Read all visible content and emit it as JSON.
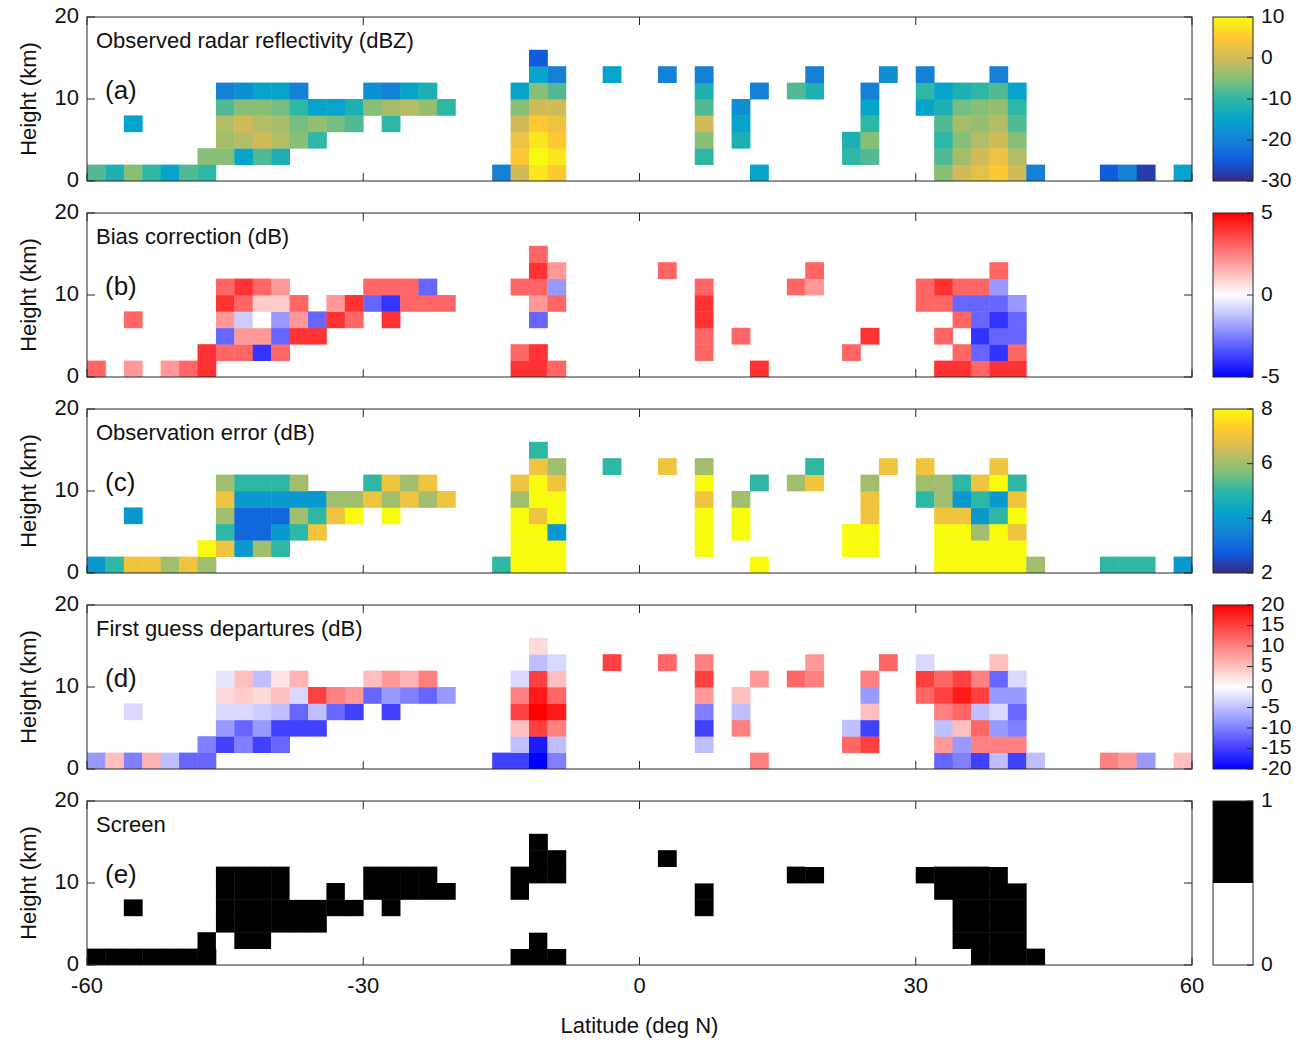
{
  "chart_data": {
    "type": "heatmap",
    "xlabel": "Latitude (deg N)",
    "ylabel": "Height (km)",
    "xlim": [
      -60,
      60
    ],
    "xticks": [
      -60,
      -30,
      0,
      30,
      60
    ],
    "ylim": [
      0,
      20
    ],
    "yticks": [
      0,
      10,
      20
    ],
    "cell_width": 2,
    "cell_height": 2,
    "x": [
      -59,
      -57,
      -55,
      -53,
      -51,
      -49,
      -55,
      -47,
      -47,
      -45,
      -45,
      -45,
      -45,
      -45,
      -43,
      -43,
      -43,
      -43,
      -43,
      -41,
      -41,
      -41,
      -41,
      -41,
      -39,
      -39,
      -39,
      -39,
      -39,
      -37,
      -37,
      -37,
      -37,
      -35,
      -35,
      -35,
      -33,
      -33,
      -31,
      -31,
      -29,
      -29,
      -27,
      -27,
      -27,
      -25,
      -25,
      -23,
      -23,
      -21,
      -15,
      -13,
      -13,
      -13,
      -13,
      -13,
      -13,
      -11,
      -11,
      -11,
      -11,
      -11,
      -11,
      -11,
      -11,
      -9,
      -9,
      -9,
      -9,
      -9,
      -9,
      -9,
      -3,
      3,
      7,
      7,
      7,
      7,
      7,
      7,
      11,
      11,
      11,
      13,
      13,
      17,
      19,
      19,
      23,
      23,
      25,
      25,
      25,
      25,
      25,
      27,
      31,
      31,
      31,
      33,
      33,
      33,
      33,
      33,
      33,
      35,
      35,
      35,
      35,
      35,
      35,
      37,
      37,
      37,
      37,
      37,
      37,
      39,
      39,
      39,
      39,
      39,
      39,
      39,
      41,
      41,
      41,
      41,
      41,
      41,
      43,
      51,
      53,
      55,
      59
    ],
    "y": [
      1,
      1,
      1,
      1,
      1,
      1,
      7,
      1,
      3,
      3,
      5,
      7,
      9,
      11,
      3,
      5,
      7,
      9,
      11,
      3,
      5,
      7,
      9,
      11,
      3,
      5,
      7,
      9,
      11,
      5,
      7,
      9,
      11,
      5,
      7,
      9,
      7,
      9,
      7,
      9,
      9,
      11,
      7,
      9,
      11,
      9,
      11,
      9,
      11,
      9,
      1,
      1,
      3,
      5,
      7,
      9,
      11,
      1,
      3,
      5,
      7,
      9,
      11,
      13,
      15,
      1,
      3,
      5,
      7,
      9,
      11,
      13,
      13,
      13,
      3,
      5,
      7,
      9,
      11,
      13,
      5,
      7,
      9,
      11,
      1,
      11,
      11,
      13,
      3,
      5,
      3,
      5,
      7,
      9,
      11,
      13,
      9,
      11,
      13,
      1,
      3,
      5,
      7,
      9,
      11,
      1,
      3,
      5,
      7,
      9,
      11,
      1,
      3,
      5,
      7,
      9,
      11,
      1,
      3,
      5,
      7,
      9,
      11,
      13,
      1,
      3,
      5,
      7,
      9,
      11,
      1,
      1,
      1,
      1,
      1
    ],
    "panels": [
      {
        "letter": "(a)",
        "title": "Observed radar reflectivity (dBZ)",
        "type": "heatmap",
        "colorbar": {
          "range": [
            -30,
            10
          ],
          "ticks": [
            -30,
            -20,
            -10,
            0,
            10
          ],
          "colors": [
            "#352a87",
            "#0f5cdd",
            "#1481d6",
            "#06a4ca",
            "#2eb7a4",
            "#87bf77",
            "#d1bb59",
            "#fec832",
            "#f9fb0e"
          ]
        },
        "values": [
          -8,
          -12,
          -5,
          -10,
          -15,
          -8,
          -15,
          -10,
          -5,
          -5,
          -3,
          -2,
          -8,
          -20,
          -15,
          -2,
          0,
          -5,
          -18,
          -8,
          0,
          -2,
          -5,
          -15,
          -12,
          -2,
          -3,
          -6,
          -15,
          -5,
          -6,
          -10,
          -20,
          -10,
          -4,
          -15,
          -6,
          -15,
          -8,
          -12,
          -5,
          -18,
          -10,
          -3,
          -20,
          -2,
          -15,
          -4,
          -12,
          -10,
          -20,
          0,
          5,
          3,
          0,
          -5,
          -15,
          8,
          10,
          8,
          5,
          0,
          -5,
          -15,
          -25,
          5,
          8,
          5,
          3,
          0,
          -8,
          -20,
          -15,
          -20,
          -10,
          -5,
          0,
          -8,
          -12,
          -20,
          -12,
          -15,
          -18,
          -20,
          -15,
          -8,
          -12,
          -20,
          -10,
          -12,
          -8,
          -5,
          -10,
          -15,
          -20,
          -18,
          -15,
          -10,
          -20,
          -5,
          -8,
          -10,
          -8,
          -12,
          -15,
          0,
          -3,
          -5,
          -3,
          -6,
          -12,
          2,
          0,
          -2,
          -4,
          -5,
          -10,
          5,
          3,
          0,
          -2,
          -4,
          -8,
          -20,
          0,
          -2,
          -5,
          -8,
          -10,
          -15,
          -20,
          -25,
          -20,
          -28,
          -15
        ]
      },
      {
        "letter": "(b)",
        "title": "Bias correction (dB)",
        "type": "heatmap",
        "colorbar": {
          "range": [
            -5,
            5
          ],
          "ticks": [
            -5,
            0,
            5
          ],
          "colors": [
            "#0000ff",
            "#ffffff",
            "#ff0000"
          ]
        },
        "values": [
          3,
          null,
          2,
          null,
          2,
          3,
          3,
          4,
          4,
          3,
          -3,
          2,
          4,
          3,
          3,
          2,
          -1,
          3,
          4,
          -4,
          2,
          0,
          1,
          3,
          3,
          -3,
          -2,
          1,
          2,
          4,
          2,
          3,
          null,
          4,
          -3,
          null,
          4,
          2,
          3,
          4,
          -3,
          3,
          4,
          -4,
          3,
          3,
          3,
          3,
          -3,
          3,
          null,
          4,
          3,
          null,
          null,
          null,
          3,
          4,
          4,
          null,
          -3,
          2,
          3,
          4,
          3,
          3,
          null,
          null,
          null,
          3,
          -2,
          2,
          null,
          3,
          3,
          3,
          4,
          4,
          3,
          null,
          3,
          null,
          null,
          null,
          4,
          3,
          2,
          3,
          3,
          null,
          null,
          4,
          null,
          null,
          null,
          null,
          3,
          3,
          null,
          4,
          null,
          3,
          null,
          3,
          4,
          4,
          3,
          null,
          3,
          -3,
          3,
          3,
          -3,
          -4,
          -3,
          -3,
          3,
          4,
          -4,
          -3,
          -4,
          -3,
          -2,
          3,
          4,
          3,
          -3,
          -3,
          -2,
          null,
          null,
          null,
          null,
          null,
          null
        ]
      },
      {
        "letter": "(c)",
        "title": "Observation error (dB)",
        "type": "heatmap",
        "colorbar": {
          "range": [
            2,
            8
          ],
          "ticks": [
            2,
            4,
            6,
            8
          ],
          "colors": [
            "#352a87",
            "#0f5cdd",
            "#1481d6",
            "#06a4ca",
            "#2eb7a4",
            "#87bf77",
            "#d1bb59",
            "#fec832",
            "#f9fb0e"
          ]
        },
        "values": [
          4,
          5,
          7,
          7,
          6,
          7,
          4,
          6,
          8,
          7,
          5,
          6,
          7,
          6,
          4,
          3,
          3,
          4,
          5,
          6,
          3,
          3,
          4,
          5,
          5,
          4,
          3,
          4,
          5,
          5,
          6,
          4,
          6,
          7,
          5,
          4,
          7,
          6,
          8,
          6,
          7,
          5,
          8,
          6,
          7,
          7,
          6,
          6,
          7,
          7,
          5,
          8,
          8,
          8,
          8,
          6,
          7,
          8,
          8,
          8,
          7,
          8,
          8,
          7,
          5,
          8,
          8,
          4,
          8,
          8,
          7,
          6,
          5,
          7,
          8,
          8,
          8,
          7,
          8,
          6,
          8,
          8,
          6,
          5,
          8,
          6,
          7,
          5,
          8,
          8,
          8,
          8,
          7,
          7,
          6,
          7,
          5,
          6,
          7,
          8,
          8,
          8,
          7,
          6,
          6,
          8,
          8,
          8,
          7,
          4,
          5,
          8,
          8,
          6,
          4,
          5,
          7,
          8,
          8,
          8,
          5,
          4,
          8,
          7,
          8,
          8,
          7,
          8,
          7,
          5,
          6,
          5,
          5,
          5,
          4
        ]
      },
      {
        "letter": "(d)",
        "title": "First guess departures (dB)",
        "type": "heatmap",
        "colorbar": {
          "range": [
            -20,
            20
          ],
          "ticks": [
            -20,
            -15,
            -10,
            -5,
            0,
            5,
            10,
            15,
            20
          ],
          "colors": [
            "#0000ff",
            "#ffffff",
            "#ff0000"
          ]
        },
        "values": [
          -8,
          5,
          -10,
          6,
          -5,
          -12,
          -3,
          -12,
          -10,
          -15,
          -8,
          -3,
          3,
          -2,
          -10,
          -12,
          -3,
          4,
          5,
          -15,
          -8,
          -4,
          3,
          -5,
          -12,
          -15,
          -5,
          5,
          2,
          -15,
          -12,
          -3,
          6,
          -15,
          -5,
          15,
          -12,
          10,
          -15,
          8,
          -12,
          5,
          -15,
          -8,
          8,
          -10,
          6,
          -12,
          10,
          -8,
          -15,
          -15,
          -5,
          5,
          15,
          10,
          -3,
          -20,
          -18,
          15,
          20,
          18,
          15,
          -5,
          3,
          -10,
          -5,
          10,
          18,
          12,
          5,
          -3,
          15,
          12,
          -5,
          -15,
          -10,
          8,
          15,
          10,
          10,
          -5,
          5,
          8,
          10,
          12,
          10,
          8,
          12,
          -5,
          15,
          -15,
          5,
          -8,
          10,
          12,
          12,
          15,
          -3,
          -12,
          8,
          -5,
          10,
          15,
          12,
          -10,
          -8,
          5,
          12,
          18,
          15,
          -15,
          10,
          12,
          -5,
          15,
          10,
          -5,
          10,
          -8,
          -3,
          -8,
          -12,
          5,
          -15,
          10,
          -10,
          -12,
          -8,
          -3,
          -5,
          10,
          8,
          -8,
          5
        ]
      },
      {
        "letter": "(e)",
        "title": "Screen",
        "type": "mask",
        "colorbar": {
          "range": [
            0,
            1
          ],
          "ticks": [
            0,
            1
          ],
          "colors": [
            "#ffffff",
            "#000000"
          ]
        },
        "values": [
          1,
          1,
          1,
          1,
          1,
          1,
          1,
          1,
          1,
          0,
          1,
          1,
          1,
          1,
          1,
          1,
          1,
          1,
          1,
          1,
          1,
          1,
          1,
          1,
          0,
          1,
          1,
          1,
          1,
          1,
          1,
          0,
          0,
          1,
          1,
          0,
          1,
          1,
          1,
          0,
          1,
          1,
          1,
          1,
          1,
          1,
          1,
          1,
          1,
          1,
          0,
          1,
          0,
          0,
          0,
          1,
          1,
          1,
          1,
          0,
          0,
          0,
          1,
          1,
          1,
          1,
          0,
          0,
          0,
          0,
          1,
          1,
          0,
          1,
          0,
          0,
          1,
          1,
          0,
          0,
          0,
          0,
          0,
          0,
          0,
          1,
          1,
          0,
          0,
          0,
          0,
          0,
          0,
          0,
          0,
          0,
          0,
          1,
          0,
          0,
          0,
          0,
          0,
          1,
          1,
          0,
          1,
          1,
          1,
          1,
          1,
          1,
          1,
          1,
          1,
          1,
          1,
          1,
          1,
          1,
          1,
          1,
          1,
          0,
          1,
          1,
          1,
          1,
          1,
          0,
          1,
          0,
          0,
          0,
          0
        ]
      }
    ]
  }
}
